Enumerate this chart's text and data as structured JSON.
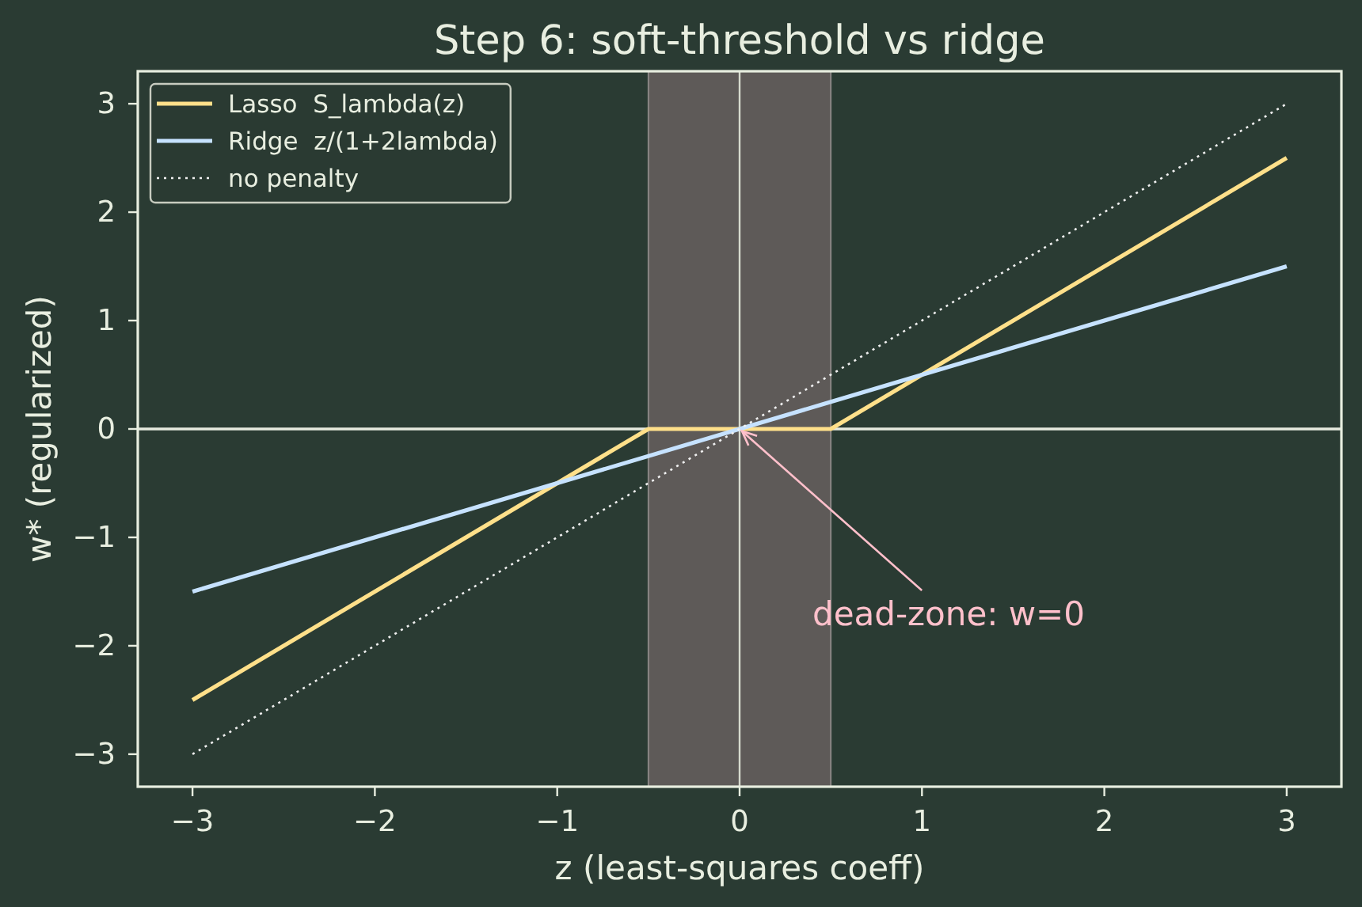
{
  "chart_data": {
    "type": "line",
    "title": "Step 6: soft-threshold vs ridge",
    "xlabel": "z (least-squares coeff)",
    "ylabel": "w* (regularized)",
    "series": [
      {
        "name": "Lasso  S_lambda(z)",
        "color": "#ffe08a",
        "x": [
          -3,
          -0.5,
          0.5,
          3
        ],
        "values": [
          -2.5,
          0,
          0,
          2.5
        ],
        "line_style": "solid"
      },
      {
        "name": "Ridge  z/(1+2lambda)",
        "color": "#c6e2ff",
        "x": [
          -3,
          0,
          3
        ],
        "values": [
          -1.5,
          0,
          1.5
        ],
        "line_style": "solid"
      },
      {
        "name": "no penalty",
        "color": "#f0f0f0",
        "x": [
          -3,
          0,
          3
        ],
        "values": [
          -3,
          0,
          3
        ],
        "line_style": "dotted"
      }
    ],
    "xlim": [
      -3.3,
      3.3
    ],
    "ylim": [
      -3.3,
      3.3
    ],
    "xticks": [
      {
        "value": -3,
        "label": "−3"
      },
      {
        "value": -2,
        "label": "−2"
      },
      {
        "value": -1,
        "label": "−1"
      },
      0,
      1,
      2,
      3
    ],
    "yticks": [
      {
        "value": -3,
        "label": "−3"
      },
      {
        "value": -2,
        "label": "−2"
      },
      {
        "value": -1,
        "label": "−1"
      },
      0,
      1,
      2,
      3
    ],
    "ref_lines": [
      {
        "axis": "x",
        "value": 0,
        "color": "#d6dacd"
      },
      {
        "axis": "y",
        "value": 0,
        "color": "#e6eadf"
      }
    ],
    "bands": [
      {
        "axis": "x",
        "from": -0.5,
        "to": 0.5,
        "color": "#5e5a58"
      }
    ],
    "annotations": [
      {
        "text": "dead-zone: w=0",
        "x": 0,
        "y": 0
      }
    ],
    "grid": false,
    "legend": "top left"
  }
}
